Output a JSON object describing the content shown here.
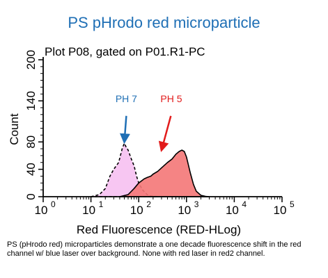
{
  "header": {
    "title": "PS pHrodo red microparticle"
  },
  "caption": "PS (pHrodo red) microparticles demonstrate a one decade fluorescence shift in the red channel w/ blue laser over background. None with red laser in red2 channel.",
  "chart_data": {
    "type": "area",
    "title": "Plot P08, gated on P01.R1-PC",
    "xlabel": "Red Fluorescence (RED-HLog)",
    "ylabel": "Count",
    "x_scale": "log",
    "xlim": [
      1,
      100000
    ],
    "ylim": [
      0,
      200
    ],
    "x_ticks": [
      {
        "value": 1,
        "base": "10",
        "exp": "0"
      },
      {
        "value": 10,
        "base": "10",
        "exp": "1"
      },
      {
        "value": 100,
        "base": "10",
        "exp": "2"
      },
      {
        "value": 1000,
        "base": "10",
        "exp": "3"
      },
      {
        "value": 10000,
        "base": "10",
        "exp": "4"
      },
      {
        "value": 100000,
        "base": "10",
        "exp": "5"
      }
    ],
    "y_ticks": [
      0,
      40,
      80,
      140,
      200
    ],
    "grid": false,
    "series": [
      {
        "name": "PH 7",
        "fill": "#f7c6f2",
        "line_style": "dashed",
        "label_color": "#1f6fb5",
        "x": [
          10,
          15,
          20,
          25,
          30,
          38,
          45,
          50,
          55,
          60,
          70,
          80,
          90,
          100,
          120,
          150,
          180,
          250
        ],
        "y": [
          0,
          3,
          12,
          30,
          40,
          50,
          70,
          78,
          72,
          68,
          55,
          45,
          30,
          20,
          10,
          3,
          1,
          0
        ]
      },
      {
        "name": "PH 5",
        "fill": "#f47777",
        "line_style": "solid",
        "label_color": "#e21b1b",
        "x": [
          40,
          60,
          80,
          100,
          130,
          150,
          180,
          200,
          250,
          300,
          400,
          500,
          600,
          700,
          800,
          900,
          1000,
          1200,
          1400,
          1600,
          2000,
          2500,
          3000
        ],
        "y": [
          0,
          3,
          12,
          20,
          26,
          28,
          30,
          33,
          37,
          42,
          50,
          55,
          62,
          66,
          68,
          66,
          58,
          35,
          18,
          8,
          2,
          0.5,
          0
        ]
      }
    ],
    "annotations": [
      {
        "series": "PH 7",
        "text": "PH 7",
        "color": "#1f6fb5",
        "text_x": 55,
        "text_y": 138,
        "arrow_from_x": 55,
        "arrow_from_y": 118,
        "arrow_to_x": 50,
        "arrow_to_y": 80
      },
      {
        "series": "PH 5",
        "text": "PH 5",
        "color": "#e21b1b",
        "text_x": 480,
        "text_y": 138,
        "arrow_from_x": 470,
        "arrow_from_y": 118,
        "arrow_to_x": 300,
        "arrow_to_y": 68
      }
    ]
  }
}
